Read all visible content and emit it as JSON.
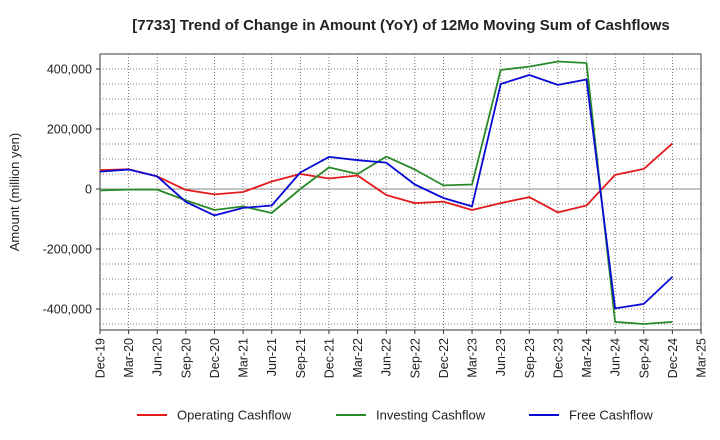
{
  "chart_data": {
    "type": "line",
    "title": "[7733]  Trend of Change in Amount (YoY) of 12Mo Moving Sum of Cashflows",
    "xlabel": "",
    "ylabel": "Amount (million yen)",
    "ylim": [
      -470000,
      450000
    ],
    "yticks": [
      400000,
      200000,
      0,
      -200000,
      -400000
    ],
    "ytick_labels": [
      "400,000",
      "200,000",
      "0",
      "-200,000",
      "-400,000"
    ],
    "grid": true,
    "legend_position": "bottom",
    "categories": [
      "Dec-19",
      "Mar-20",
      "Jun-20",
      "Sep-20",
      "Dec-20",
      "Mar-21",
      "Jun-21",
      "Sep-21",
      "Dec-21",
      "Mar-22",
      "Jun-22",
      "Sep-22",
      "Dec-22",
      "Mar-23",
      "Jun-23",
      "Sep-23",
      "Dec-23",
      "Mar-24",
      "Jun-24",
      "Sep-24",
      "Dec-24",
      "Mar-25"
    ],
    "series": [
      {
        "name": "Operating Cashflow",
        "color": "#e41a1c",
        "values": [
          63000,
          66000,
          42000,
          -3000,
          -18000,
          -10000,
          25000,
          50000,
          35000,
          45000,
          -20000,
          -47000,
          -42000,
          -70000,
          -47000,
          -27000,
          -78000,
          -55000,
          47000,
          67000,
          152000,
          null
        ]
      },
      {
        "name": "Investing Cashflow",
        "color": "#2a8a2a",
        "values": [
          -5000,
          -2000,
          -2000,
          -38000,
          -70000,
          -58000,
          -80000,
          0,
          72000,
          50000,
          108000,
          65000,
          12000,
          15000,
          397000,
          408000,
          425000,
          420000,
          -443000,
          -450000,
          -443000,
          null
        ]
      },
      {
        "name": "Free Cashflow",
        "color": "#0a0ad6",
        "values": [
          58000,
          65000,
          42000,
          -43000,
          -88000,
          -63000,
          -55000,
          55000,
          107000,
          96000,
          88000,
          15000,
          -30000,
          -58000,
          350000,
          380000,
          347000,
          365000,
          -398000,
          -383000,
          -293000,
          null
        ]
      }
    ]
  }
}
